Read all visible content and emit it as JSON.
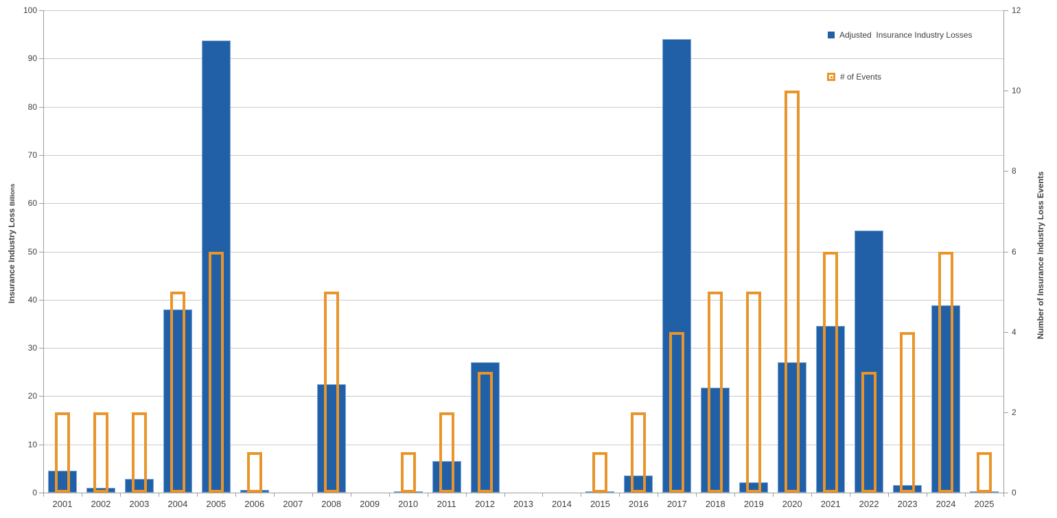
{
  "chart_data": {
    "type": "bar",
    "title": "",
    "categories": [
      "2001",
      "2002",
      "2003",
      "2004",
      "2005",
      "2006",
      "2007",
      "2008",
      "2009",
      "2010",
      "2011",
      "2012",
      "2013",
      "2014",
      "2015",
      "2016",
      "2017",
      "2018",
      "2019",
      "2020",
      "2021",
      "2022",
      "2023",
      "2024",
      "2025"
    ],
    "series": [
      {
        "name": "Adjusted  Insurance Industry Losses",
        "axis": "left",
        "style": "filled",
        "color": "#2160a7",
        "values": [
          4.5,
          1.0,
          2.9,
          38.0,
          93.7,
          0.5,
          0,
          22.5,
          0,
          0.3,
          6.6,
          27.0,
          0,
          0,
          0.3,
          3.6,
          94.0,
          21.7,
          2.2,
          27.0,
          34.6,
          54.3,
          1.5,
          38.8,
          0.3
        ]
      },
      {
        "name": "# of Events",
        "axis": "right",
        "style": "outline",
        "color": "#e8952b",
        "values": [
          2,
          2,
          2,
          5,
          6,
          1,
          0,
          5,
          0,
          1,
          2,
          3,
          0,
          0,
          1,
          2,
          4,
          5,
          5,
          10,
          6,
          3,
          4,
          6,
          1
        ]
      }
    ],
    "left_axis": {
      "title": "Insurance Industry Loss",
      "title_sub": "Billions",
      "min": 0,
      "max": 100,
      "step": 10
    },
    "right_axis": {
      "title": "Number of Insurance Industry Loss Events",
      "min": 0,
      "max": 12,
      "step": 2
    },
    "legend_position": "top-right",
    "grid": true
  },
  "legend": {
    "losses_label": "Adjusted  Insurance Industry Losses",
    "events_label": "# of Events"
  },
  "colors": {
    "losses_bar": "#2160a7",
    "losses_bar_border": "#7fa8d6",
    "events_bar_outline": "#e8952b",
    "gridline": "#c9c9c9",
    "axis_line": "#9b9b9b",
    "tick_text": "#404040"
  }
}
